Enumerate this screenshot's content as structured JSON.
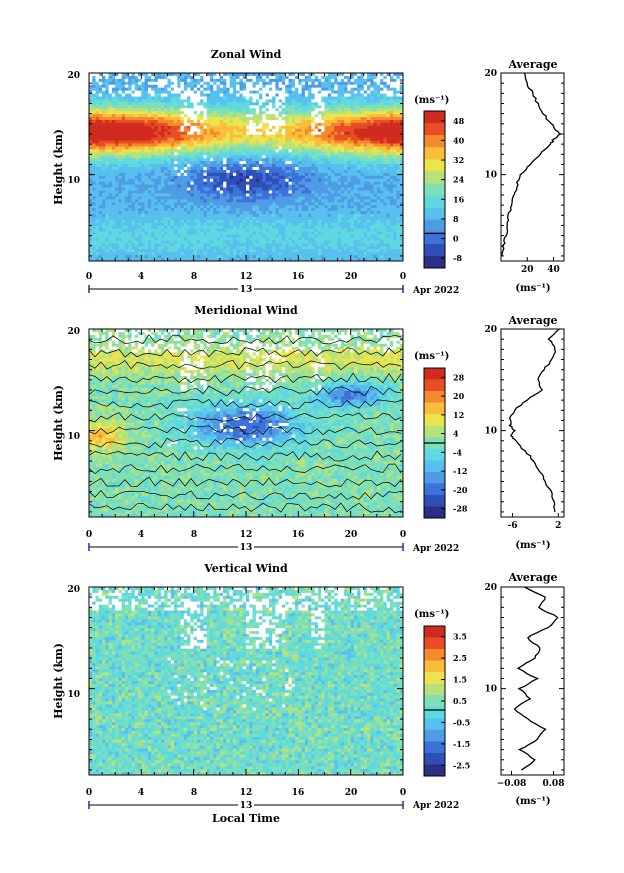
{
  "colors": {
    "palette": [
      "#2b2f86",
      "#2e4fb8",
      "#3d72d8",
      "#4f9be6",
      "#58c0ee",
      "#5fd9e0",
      "#7fe0b8",
      "#b5e27a",
      "#ece44e",
      "#fbbd3c",
      "#f58a2c",
      "#e84d25",
      "#d12b20"
    ]
  },
  "date_label": "Apr 2022",
  "xaxis": {
    "ticks": [
      "0",
      "4",
      "8",
      "12",
      "16",
      "20",
      "0"
    ],
    "day_label": "13",
    "xlabel": "Local Time"
  },
  "chart_data": [
    {
      "type": "heatmap",
      "name": "zonal",
      "title": "Zonal Wind",
      "ylabel": "Height (km)",
      "xlim": [
        0,
        24
      ],
      "ylim": [
        1.5,
        20
      ],
      "yticks": [
        "10",
        "20"
      ],
      "colorbar": {
        "unit": "(ms⁻¹)",
        "ticks": [
          "48",
          "40",
          "32",
          "24",
          "16",
          "8",
          "0",
          "-8"
        ],
        "range": [
          -12,
          52
        ]
      },
      "average": {
        "title": "Average",
        "xlabel": "(ms⁻¹)",
        "xticks": [
          "20",
          "40"
        ],
        "xlim": [
          0,
          48
        ],
        "profile": [
          [
            2,
            1
          ],
          [
            3,
            2
          ],
          [
            4,
            4
          ],
          [
            5,
            5
          ],
          [
            6,
            6
          ],
          [
            7,
            8
          ],
          [
            8,
            10
          ],
          [
            9,
            12
          ],
          [
            10,
            15
          ],
          [
            11,
            22
          ],
          [
            12,
            30
          ],
          [
            13,
            38
          ],
          [
            13.5,
            40
          ],
          [
            14,
            45
          ],
          [
            14.5,
            41
          ],
          [
            15,
            38
          ],
          [
            16,
            32
          ],
          [
            17,
            28
          ],
          [
            18,
            24
          ],
          [
            19,
            20
          ],
          [
            20,
            18
          ]
        ]
      }
    },
    {
      "type": "heatmap",
      "name": "meridional",
      "title": "Meridional Wind",
      "ylabel": "Height (km)",
      "xlim": [
        0,
        24
      ],
      "ylim": [
        1.5,
        20
      ],
      "yticks": [
        "10",
        "20"
      ],
      "colorbar": {
        "unit": "(ms⁻¹)",
        "ticks": [
          "28",
          "20",
          "12",
          "4",
          "-4",
          "-12",
          "-20",
          "-28"
        ],
        "range": [
          -32,
          32
        ]
      },
      "average": {
        "title": "Average",
        "xlabel": "(ms⁻¹)",
        "xticks": [
          "-6",
          "2"
        ],
        "xlim": [
          -8,
          3
        ],
        "profile": [
          [
            2,
            1.5
          ],
          [
            3,
            1.2
          ],
          [
            4,
            0.6
          ],
          [
            5,
            -0.2
          ],
          [
            6,
            -1.2
          ],
          [
            7,
            -2.2
          ],
          [
            8,
            -3.8
          ],
          [
            9,
            -5.5
          ],
          [
            9.5,
            -6.2
          ],
          [
            10,
            -5.6
          ],
          [
            10.5,
            -6.4
          ],
          [
            11,
            -6.5
          ],
          [
            12,
            -5.8
          ],
          [
            13,
            -3.5
          ],
          [
            14,
            -0.8
          ],
          [
            15,
            -1.5
          ],
          [
            16,
            -0.5
          ],
          [
            17,
            0.8
          ],
          [
            18,
            1.6
          ],
          [
            19,
            0.5
          ],
          [
            20,
            2.2
          ]
        ]
      }
    },
    {
      "type": "heatmap",
      "name": "vertical",
      "title": "Vertical Wind",
      "ylabel": "Height (km)",
      "xlim": [
        0,
        24
      ],
      "ylim": [
        1.5,
        20
      ],
      "yticks": [
        "10",
        "20"
      ],
      "colorbar": {
        "unit": "(ms⁻¹)",
        "ticks": [
          "3.5",
          "2.5",
          "1.5",
          "0.5",
          "-0.5",
          "-1.5",
          "-2.5"
        ],
        "range": [
          -3.5,
          4.5
        ]
      },
      "average": {
        "title": "Average",
        "xlabel": "(ms⁻¹)",
        "xticks": [
          "−0.08",
          "0.08"
        ],
        "xlim": [
          -0.12,
          0.12
        ],
        "profile": [
          [
            2,
            -0.04
          ],
          [
            3,
            0.01
          ],
          [
            4,
            -0.05
          ],
          [
            5,
            0.02
          ],
          [
            6,
            0.05
          ],
          [
            7,
            -0.02
          ],
          [
            8,
            -0.07
          ],
          [
            9,
            -0.01
          ],
          [
            10,
            -0.05
          ],
          [
            11,
            0.02
          ],
          [
            12,
            -0.06
          ],
          [
            13,
            0.01
          ],
          [
            14,
            0.03
          ],
          [
            15,
            -0.02
          ],
          [
            16,
            0.06
          ],
          [
            17,
            0.1
          ],
          [
            18,
            0.02
          ],
          [
            19,
            0.05
          ],
          [
            20,
            -0.03
          ]
        ]
      }
    }
  ]
}
